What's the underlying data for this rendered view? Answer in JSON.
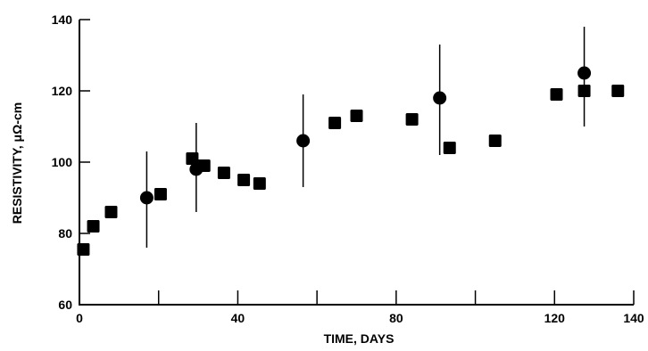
{
  "chart_data": {
    "type": "scatter",
    "title": "",
    "xlabel": "TIME, DAYS",
    "ylabel": "RESISTIVITY, μΩ-cm",
    "xlim": [
      0,
      140
    ],
    "ylim": [
      60,
      140
    ],
    "xticks": [
      0,
      40,
      80,
      120,
      140
    ],
    "xticks_minor": [
      20,
      60,
      100
    ],
    "yticks": [
      60,
      80,
      100,
      120,
      140
    ],
    "grid": false,
    "series": [
      {
        "marker": "square",
        "points": [
          {
            "x": 1,
            "y": 75.5
          },
          {
            "x": 3.5,
            "y": 82
          },
          {
            "x": 8,
            "y": 86
          },
          {
            "x": 20.5,
            "y": 91
          },
          {
            "x": 28.5,
            "y": 101
          },
          {
            "x": 30,
            "y": 99
          },
          {
            "x": 31.5,
            "y": 99
          },
          {
            "x": 36.5,
            "y": 97
          },
          {
            "x": 41.5,
            "y": 95
          },
          {
            "x": 45.5,
            "y": 94
          },
          {
            "x": 64.5,
            "y": 111
          },
          {
            "x": 70,
            "y": 113
          },
          {
            "x": 84,
            "y": 112
          },
          {
            "x": 93.5,
            "y": 104
          },
          {
            "x": 105,
            "y": 106
          },
          {
            "x": 120.5,
            "y": 119
          },
          {
            "x": 127.5,
            "y": 120
          },
          {
            "x": 136,
            "y": 120
          }
        ]
      },
      {
        "marker": "circle",
        "points": [
          {
            "x": 17,
            "y": 90,
            "ymin": 76,
            "ymax": 103
          },
          {
            "x": 29.5,
            "y": 98,
            "ymin": 86,
            "ymax": 111
          },
          {
            "x": 56.5,
            "y": 106,
            "ymin": 93,
            "ymax": 119
          },
          {
            "x": 91,
            "y": 118,
            "ymin": 102,
            "ymax": 133
          },
          {
            "x": 127.5,
            "y": 125,
            "ymin": 110,
            "ymax": 138
          }
        ]
      }
    ]
  },
  "colors": {
    "ink": "#000000",
    "background": "#ffffff"
  }
}
